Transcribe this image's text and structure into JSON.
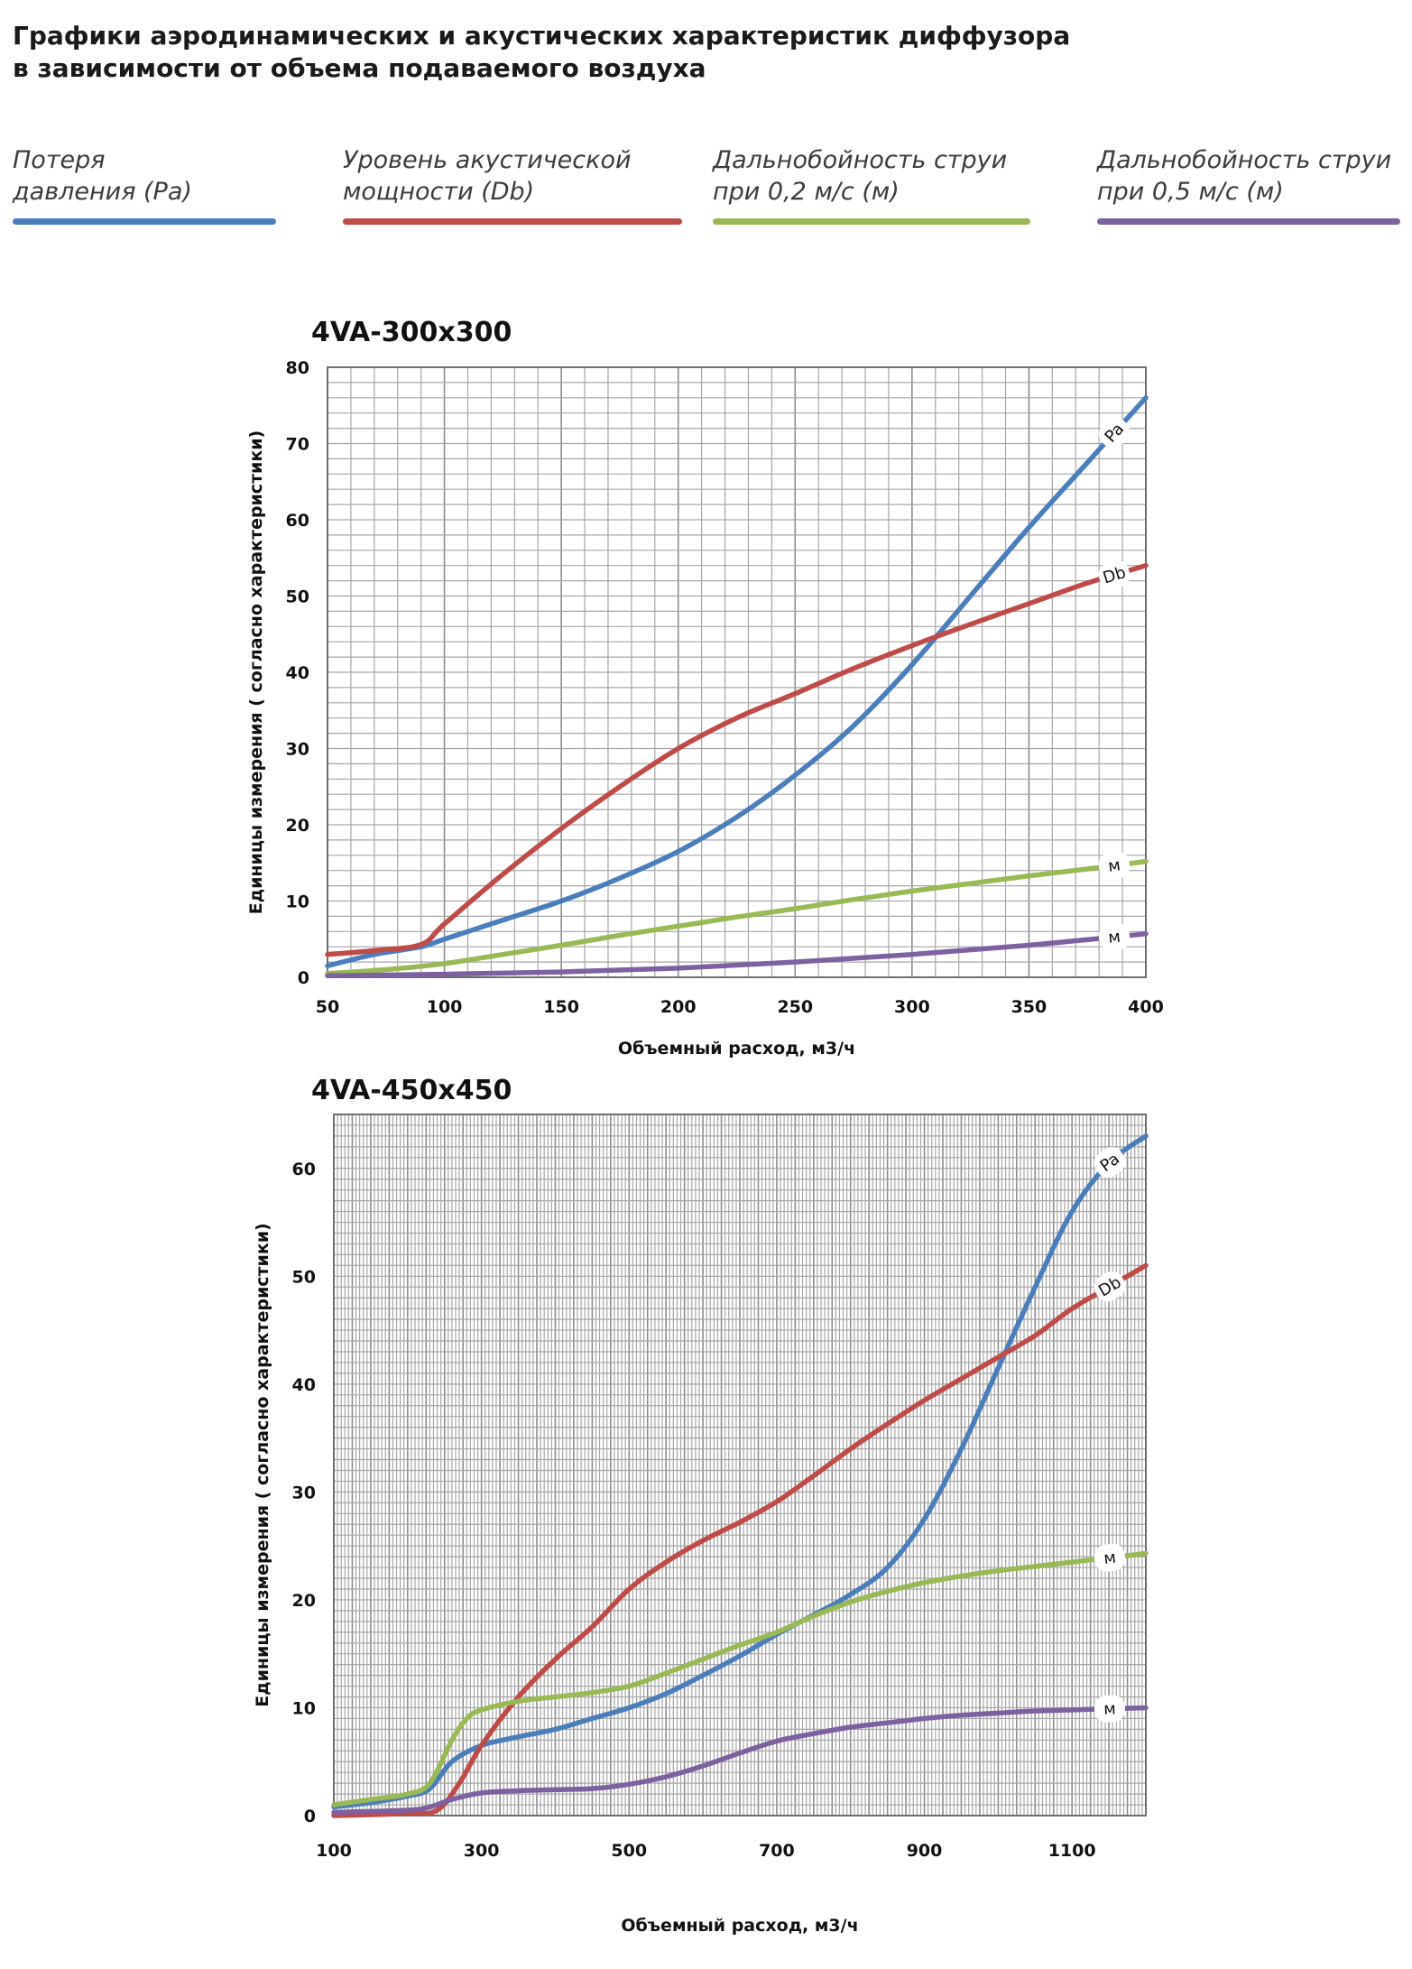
{
  "header": {
    "title_lines": [
      "Графики аэродинамических и акустических характеристик  диффузора",
      "в зависимости от объема подаваемого воздуха"
    ]
  },
  "legend": [
    {
      "lines": [
        "Потеря",
        "давления (Pa)"
      ],
      "color": "#4a7ebb"
    },
    {
      "lines": [
        "Уровень акустической",
        "мощности (Db)"
      ],
      "color": "#be4b48"
    },
    {
      "lines": [
        "Дальнобойность струи",
        "при 0,2 м/с (м)"
      ],
      "color": "#98b954"
    },
    {
      "lines": [
        "Дальнобойность струи",
        "при 0,5 м/с (м)"
      ],
      "color": "#7d60a0"
    }
  ],
  "chart_data": [
    {
      "type": "line",
      "title": "4VA-300x300",
      "xlabel": "Объемный расход, м3/ч",
      "ylabel": "Единицы измерения ( согласно характеристики)",
      "xlim": [
        50,
        400
      ],
      "ylim": [
        0,
        80
      ],
      "x_ticks": [
        50,
        100,
        150,
        200,
        250,
        300,
        350,
        400
      ],
      "y_ticks": [
        0,
        10,
        20,
        30,
        40,
        50,
        60,
        70,
        80
      ],
      "grid": true,
      "series": [
        {
          "name": "Pa",
          "color": "#4a7ebb",
          "x": [
            50,
            70,
            90,
            100,
            125,
            150,
            175,
            200,
            225,
            250,
            275,
            300,
            325,
            350,
            375,
            400
          ],
          "y": [
            1.5,
            3,
            4,
            5,
            7.5,
            10,
            13,
            16.5,
            21,
            26.5,
            33,
            41,
            50,
            59,
            67.5,
            76
          ]
        },
        {
          "name": "Db",
          "color": "#be4b48",
          "x": [
            50,
            70,
            90,
            100,
            125,
            150,
            175,
            200,
            225,
            250,
            275,
            300,
            325,
            350,
            375,
            400
          ],
          "y": [
            3,
            3.5,
            4.3,
            7,
            13.5,
            19.5,
            25,
            30,
            34,
            37.2,
            40.5,
            43.5,
            46.3,
            49,
            51.7,
            54
          ]
        },
        {
          "name": "м",
          "color": "#98b954",
          "x": [
            50,
            75,
            100,
            125,
            150,
            175,
            200,
            225,
            250,
            275,
            300,
            325,
            350,
            375,
            400
          ],
          "y": [
            0.5,
            1,
            1.8,
            3,
            4.2,
            5.5,
            6.7,
            7.9,
            9,
            10.2,
            11.3,
            12.3,
            13.3,
            14.2,
            15.2
          ]
        },
        {
          "name": "м",
          "color": "#7d60a0",
          "x": [
            50,
            100,
            150,
            200,
            250,
            300,
            350,
            400
          ],
          "y": [
            0.2,
            0.4,
            0.7,
            1.2,
            2,
            3,
            4.2,
            5.7
          ]
        }
      ]
    },
    {
      "type": "line",
      "title": "4VA-450x450",
      "xlabel": "Объемный расход, м3/ч",
      "ylabel": "Единицы измерения ( согласно характеристики)",
      "xlim": [
        100,
        1200
      ],
      "ylim": [
        0,
        65
      ],
      "x_ticks": [
        100,
        300,
        500,
        700,
        900,
        1100
      ],
      "y_ticks": [
        0,
        10,
        20,
        30,
        40,
        50,
        60
      ],
      "grid": true,
      "series": [
        {
          "name": "Pa",
          "color": "#4a7ebb",
          "x": [
            100,
            150,
            200,
            230,
            260,
            300,
            350,
            400,
            450,
            500,
            550,
            600,
            650,
            700,
            750,
            800,
            850,
            900,
            950,
            1000,
            1050,
            1100,
            1150,
            1200
          ],
          "y": [
            0.8,
            1.2,
            1.8,
            2.5,
            5,
            6.5,
            7.3,
            8,
            9,
            10,
            11.3,
            13,
            14.8,
            16.8,
            18.6,
            20.5,
            23,
            27.5,
            34,
            41.5,
            49,
            56,
            60.5,
            63
          ]
        },
        {
          "name": "Db",
          "color": "#be4b48",
          "x": [
            100,
            200,
            240,
            270,
            300,
            350,
            400,
            450,
            500,
            550,
            600,
            650,
            700,
            750,
            800,
            850,
            900,
            950,
            1000,
            1050,
            1100,
            1150,
            1200
          ],
          "y": [
            0,
            0.2,
            0.5,
            3,
            6.5,
            11,
            14.5,
            17.5,
            21,
            23.5,
            25.5,
            27.2,
            29.1,
            31.5,
            34,
            36.3,
            38.5,
            40.5,
            42.5,
            44.5,
            47,
            49,
            51
          ]
        },
        {
          "name": "м",
          "color": "#98b954",
          "x": [
            100,
            150,
            200,
            230,
            260,
            280,
            300,
            350,
            400,
            450,
            500,
            550,
            600,
            650,
            700,
            750,
            800,
            850,
            900,
            950,
            1000,
            1050,
            1100,
            1150,
            1200
          ],
          "y": [
            1,
            1.5,
            2,
            3,
            7,
            9,
            9.8,
            10.6,
            11,
            11.4,
            12,
            13.2,
            14.5,
            15.8,
            17,
            18.5,
            19.8,
            20.8,
            21.6,
            22.2,
            22.7,
            23.1,
            23.5,
            23.9,
            24.3
          ]
        },
        {
          "name": "м",
          "color": "#7d60a0",
          "x": [
            100,
            200,
            230,
            260,
            300,
            350,
            400,
            450,
            500,
            550,
            600,
            650,
            700,
            750,
            800,
            850,
            900,
            950,
            1000,
            1050,
            1100,
            1150,
            1200
          ],
          "y": [
            0.3,
            0.5,
            0.8,
            1.5,
            2.1,
            2.3,
            2.4,
            2.5,
            2.9,
            3.6,
            4.6,
            5.8,
            6.9,
            7.6,
            8.2,
            8.6,
            9,
            9.3,
            9.5,
            9.7,
            9.8,
            9.9,
            10
          ]
        }
      ]
    }
  ]
}
